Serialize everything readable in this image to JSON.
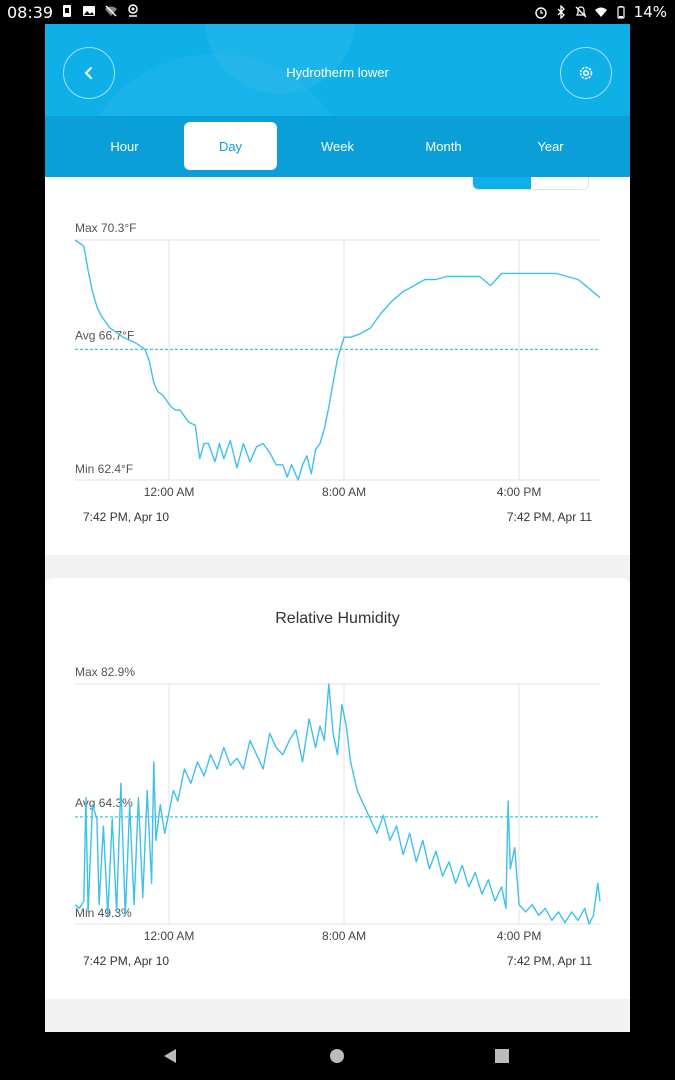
{
  "status_bar": {
    "time": "08:39",
    "battery": "14%",
    "left_icons": [
      "sim-icon",
      "image-icon",
      "wifi-off-icon",
      "location-icon"
    ],
    "right_icons": [
      "alarm-icon",
      "bluetooth-icon",
      "mute-icon",
      "wifi-icon",
      "battery-icon"
    ]
  },
  "header": {
    "title": "Hydrotherm lower",
    "back_icon": "chevron-left-icon",
    "settings_icon": "gear-icon"
  },
  "tabs": [
    {
      "label": "Hour",
      "active": false
    },
    {
      "label": "Day",
      "active": true
    },
    {
      "label": "Week",
      "active": false
    },
    {
      "label": "Month",
      "active": false
    },
    {
      "label": "Year",
      "active": false
    }
  ],
  "colors": {
    "accent": "#0fb0e8",
    "tab_bar": "#0a9fd8",
    "line": "#3ec1ea"
  },
  "chart_data": [
    {
      "type": "line",
      "title": "",
      "unit": "°F",
      "max_label": "Max 70.3°F",
      "avg_label": "Avg 66.7°F",
      "min_label": "Min 62.4°F",
      "ylim": [
        62.4,
        70.3
      ],
      "avg": 66.7,
      "x_ticks": [
        "12:00 AM",
        "8:00 AM",
        "4:00 PM"
      ],
      "x_tick_hours": [
        4.3,
        12.3,
        20.3
      ],
      "x_range": [
        0,
        24
      ],
      "start_label": "7:42 PM,  Apr 10",
      "end_label": "7:42 PM,  Apr 11",
      "x": [
        0,
        0.4,
        0.6,
        0.8,
        1.0,
        1.2,
        1.4,
        1.6,
        1.8,
        2.0,
        2.2,
        2.5,
        2.8,
        3.0,
        3.2,
        3.4,
        3.6,
        3.8,
        4.0,
        4.2,
        4.4,
        4.6,
        4.8,
        5.0,
        5.2,
        5.5,
        5.7,
        5.9,
        6.1,
        6.4,
        6.6,
        6.8,
        7.1,
        7.4,
        7.7,
        8.0,
        8.3,
        8.6,
        8.9,
        9.2,
        9.5,
        9.7,
        9.9,
        10.2,
        10.4,
        10.6,
        10.8,
        11.0,
        11.2,
        11.4,
        11.6,
        11.8,
        12.0,
        12.3,
        12.6,
        13.0,
        13.5,
        14.0,
        14.5,
        15.0,
        15.5,
        16.0,
        16.5,
        17.0,
        17.5,
        18.0,
        18.5,
        19.0,
        19.5,
        20.0,
        20.5,
        21.0,
        21.5,
        22.0,
        22.5,
        23.0,
        23.5,
        24.0
      ],
      "y": [
        70.3,
        70.1,
        69.3,
        68.6,
        68.1,
        67.8,
        67.6,
        67.4,
        67.3,
        67.2,
        67.1,
        67.0,
        66.9,
        66.8,
        66.7,
        66.3,
        65.6,
        65.3,
        65.2,
        65.0,
        64.8,
        64.7,
        64.7,
        64.5,
        64.3,
        64.2,
        63.1,
        63.6,
        63.6,
        63.0,
        63.6,
        63.1,
        63.7,
        62.8,
        63.6,
        63.0,
        63.5,
        63.6,
        63.3,
        62.9,
        62.9,
        62.5,
        62.9,
        62.4,
        62.9,
        63.2,
        62.6,
        63.4,
        63.6,
        64.1,
        64.8,
        65.6,
        66.4,
        67.1,
        67.1,
        67.2,
        67.4,
        67.9,
        68.3,
        68.6,
        68.8,
        69.0,
        69.0,
        69.1,
        69.1,
        69.1,
        69.1,
        68.8,
        69.2,
        69.2,
        69.2,
        69.2,
        69.2,
        69.2,
        69.1,
        69.0,
        68.7,
        68.4
      ]
    },
    {
      "type": "line",
      "title": "Relative Humidity",
      "unit": "%",
      "max_label": "Max 82.9%",
      "avg_label": "Avg 64.3%",
      "min_label": "Min 49.3%",
      "ylim": [
        49.3,
        82.9
      ],
      "avg": 64.3,
      "x_ticks": [
        "12:00 AM",
        "8:00 AM",
        "4:00 PM"
      ],
      "x_tick_hours": [
        4.3,
        12.3,
        20.3
      ],
      "x_range": [
        0,
        24
      ],
      "start_label": "7:42 PM,  Apr 10",
      "end_label": "7:42 PM,  Apr 11",
      "x": [
        0,
        0.2,
        0.4,
        0.5,
        0.6,
        0.8,
        1.0,
        1.1,
        1.3,
        1.5,
        1.7,
        1.9,
        2.1,
        2.3,
        2.5,
        2.7,
        2.9,
        3.1,
        3.3,
        3.5,
        3.6,
        3.7,
        3.9,
        4.1,
        4.3,
        4.5,
        4.7,
        5.0,
        5.3,
        5.6,
        5.9,
        6.2,
        6.5,
        6.8,
        7.1,
        7.4,
        7.7,
        8.0,
        8.3,
        8.6,
        8.9,
        9.2,
        9.5,
        9.8,
        10.1,
        10.4,
        10.7,
        11.0,
        11.2,
        11.4,
        11.6,
        11.8,
        12.0,
        12.2,
        12.4,
        12.6,
        12.9,
        13.2,
        13.5,
        13.8,
        14.1,
        14.4,
        14.7,
        15.0,
        15.3,
        15.6,
        15.9,
        16.2,
        16.5,
        16.8,
        17.1,
        17.4,
        17.7,
        18.0,
        18.3,
        18.6,
        18.9,
        19.2,
        19.5,
        19.7,
        19.8,
        19.9,
        20.1,
        20.3,
        20.6,
        20.9,
        21.2,
        21.5,
        21.8,
        22.1,
        22.4,
        22.7,
        23.0,
        23.3,
        23.5,
        23.7,
        23.9,
        24.0
      ],
      "y": [
        52.0,
        51.5,
        52.5,
        67.0,
        51.0,
        66.0,
        64.0,
        52.0,
        63.0,
        50.5,
        64.0,
        51.0,
        69.0,
        50.5,
        66.0,
        52.0,
        67.0,
        53.0,
        68.0,
        55.0,
        72.0,
        61.0,
        66.0,
        62.0,
        65.0,
        68.0,
        66.5,
        71.0,
        69.0,
        72.0,
        70.0,
        73.0,
        71.0,
        74.0,
        71.5,
        72.5,
        71.0,
        75.0,
        73.0,
        71.0,
        76.0,
        74.0,
        73.0,
        75.0,
        76.5,
        72.0,
        78.0,
        74.0,
        77.0,
        75.0,
        82.9,
        76.0,
        73.0,
        80.0,
        77.0,
        72.0,
        68.0,
        66.0,
        64.0,
        62.0,
        64.5,
        61.0,
        63.0,
        59.0,
        62.0,
        58.0,
        61.0,
        57.0,
        59.5,
        56.0,
        58.0,
        55.0,
        57.5,
        54.5,
        56.5,
        53.5,
        55.5,
        52.5,
        54.5,
        51.5,
        66.5,
        57.0,
        60.0,
        52.0,
        51.0,
        52.0,
        50.5,
        51.5,
        49.8,
        51.0,
        49.5,
        51.0,
        49.8,
        51.5,
        49.3,
        50.5,
        55.0,
        52.5
      ]
    }
  ],
  "nav_icons": [
    "back-triangle-icon",
    "home-circle-icon",
    "recents-square-icon"
  ]
}
